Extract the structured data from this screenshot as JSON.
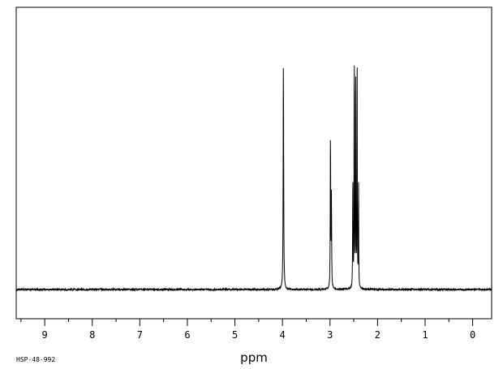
{
  "chart_data": {
    "type": "line",
    "title": "",
    "xlabel": "ppm",
    "ylabel": "",
    "sample_code": "HSP-48-992",
    "xlim": [
      9.6,
      -0.4
    ],
    "ylim": [
      -0.08,
      1.05
    ],
    "x_reversed": true,
    "grid": false,
    "legend": "none",
    "major_ticks": [
      9,
      8,
      7,
      6,
      5,
      4,
      3,
      2,
      1,
      0
    ],
    "tick_labels": [
      "9",
      "8",
      "7",
      "6",
      "5",
      "4",
      "3",
      "2",
      "1",
      "0"
    ],
    "minor_tick_step": 0.5,
    "series": [
      {
        "peaks": [
          {
            "ppm": 3.98,
            "height": 0.9,
            "width": 0.006
          },
          {
            "ppm": 2.99,
            "height": 0.62,
            "width": 0.005
          },
          {
            "ppm": 2.97,
            "height": 0.35,
            "width": 0.005
          },
          {
            "ppm": 2.52,
            "height": 0.48,
            "width": 0.004
          },
          {
            "ppm": 2.49,
            "height": 1.0,
            "width": 0.004
          },
          {
            "ppm": 2.46,
            "height": 0.92,
            "width": 0.004
          },
          {
            "ppm": 2.43,
            "height": 0.95,
            "width": 0.004
          },
          {
            "ppm": 2.4,
            "height": 0.44,
            "width": 0.004
          }
        ]
      }
    ],
    "line_color": "#000000",
    "frame_color": "#000000"
  }
}
